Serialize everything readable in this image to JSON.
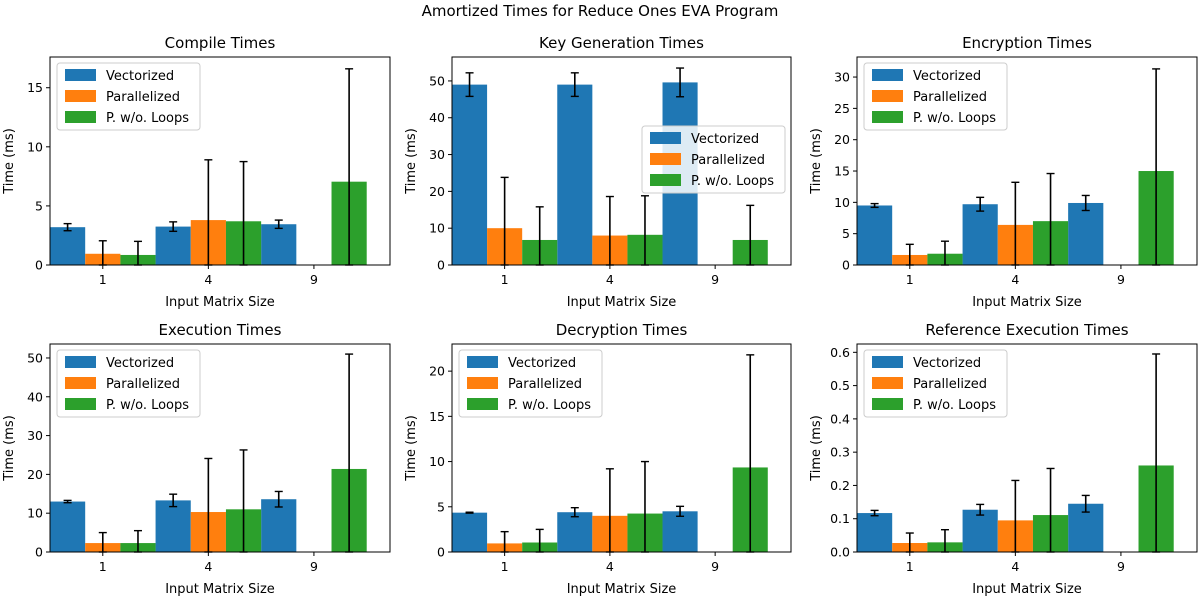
{
  "figure": {
    "title": "Amortized Times for Reduce Ones EVA Program"
  },
  "colors": {
    "Vectorized": "#1f77b4",
    "Parallelized": "#ff7f0e",
    "P. w/o. Loops": "#2ca02c",
    "errorbar": "#000000"
  },
  "chart_data": [
    {
      "type": "bar",
      "title": "Compile Times",
      "xlabel": "Input Matrix Size",
      "ylabel": "Time (ms)",
      "categories": [
        "1",
        "4",
        "9"
      ],
      "ylim": [
        0,
        17.6
      ],
      "yticks": [
        0,
        5,
        10,
        15
      ],
      "legend_position": "upper-left",
      "series": [
        {
          "name": "Vectorized",
          "values": [
            3.2,
            3.25,
            3.45
          ],
          "errors": [
            0.3,
            0.4,
            0.35
          ]
        },
        {
          "name": "Parallelized",
          "values": [
            0.95,
            3.8,
            null
          ],
          "errors": [
            1.1,
            5.1,
            null
          ]
        },
        {
          "name": "P. w/o. Loops",
          "values": [
            0.85,
            3.7,
            7.05
          ],
          "errors": [
            1.15,
            5.05,
            9.55
          ]
        }
      ]
    },
    {
      "type": "bar",
      "title": "Key Generation Times",
      "xlabel": "Input Matrix Size",
      "ylabel": "Time (ms)",
      "categories": [
        "1",
        "4",
        "9"
      ],
      "ylim": [
        0,
        56.5
      ],
      "yticks": [
        0,
        10,
        20,
        30,
        40,
        50
      ],
      "legend_position": "center-right",
      "series": [
        {
          "name": "Vectorized",
          "values": [
            49.0,
            49.0,
            49.6
          ],
          "errors": [
            3.2,
            3.2,
            3.9
          ]
        },
        {
          "name": "Parallelized",
          "values": [
            10.0,
            8.0,
            null
          ],
          "errors": [
            13.8,
            10.6,
            null
          ]
        },
        {
          "name": "P. w/o. Loops",
          "values": [
            6.8,
            8.2,
            6.8
          ],
          "errors": [
            9.0,
            10.6,
            9.4
          ]
        }
      ]
    },
    {
      "type": "bar",
      "title": "Encryption Times",
      "xlabel": "Input Matrix Size",
      "ylabel": "Time (ms)",
      "categories": [
        "1",
        "4",
        "9"
      ],
      "ylim": [
        0,
        33.2
      ],
      "yticks": [
        0,
        5,
        10,
        15,
        20,
        25,
        30
      ],
      "legend_position": "upper-left",
      "series": [
        {
          "name": "Vectorized",
          "values": [
            9.5,
            9.7,
            9.9
          ],
          "errors": [
            0.3,
            1.1,
            1.2
          ]
        },
        {
          "name": "Parallelized",
          "values": [
            1.6,
            6.4,
            null
          ],
          "errors": [
            1.7,
            6.8,
            null
          ]
        },
        {
          "name": "P. w/o. Loops",
          "values": [
            1.8,
            7.0,
            15.0
          ],
          "errors": [
            2.0,
            7.6,
            16.3
          ]
        }
      ]
    },
    {
      "type": "bar",
      "title": "Execution Times",
      "xlabel": "Input Matrix Size",
      "ylabel": "Time (ms)",
      "categories": [
        "1",
        "4",
        "9"
      ],
      "ylim": [
        0,
        53.6
      ],
      "yticks": [
        0,
        10,
        20,
        30,
        40,
        50
      ],
      "legend_position": "upper-left",
      "series": [
        {
          "name": "Vectorized",
          "values": [
            13.0,
            13.3,
            13.6
          ],
          "errors": [
            0.3,
            1.6,
            2.0
          ]
        },
        {
          "name": "Parallelized",
          "values": [
            2.3,
            10.3,
            null
          ],
          "errors": [
            2.7,
            13.8,
            null
          ]
        },
        {
          "name": "P. w/o. Loops",
          "values": [
            2.3,
            11.0,
            21.4
          ],
          "errors": [
            3.2,
            15.3,
            29.6
          ]
        }
      ]
    },
    {
      "type": "bar",
      "title": "Decryption Times",
      "xlabel": "Input Matrix Size",
      "ylabel": "Time (ms)",
      "categories": [
        "1",
        "4",
        "9"
      ],
      "ylim": [
        0,
        23.0
      ],
      "yticks": [
        0,
        5,
        10,
        15,
        20
      ],
      "legend_position": "upper-left",
      "series": [
        {
          "name": "Vectorized",
          "values": [
            4.35,
            4.4,
            4.5
          ],
          "errors": [
            0.05,
            0.5,
            0.55
          ]
        },
        {
          "name": "Parallelized",
          "values": [
            0.95,
            4.0,
            null
          ],
          "errors": [
            1.3,
            5.2,
            null
          ]
        },
        {
          "name": "P. w/o. Loops",
          "values": [
            1.05,
            4.25,
            9.35
          ],
          "errors": [
            1.45,
            5.75,
            12.45
          ]
        }
      ]
    },
    {
      "type": "bar",
      "title": "Reference Execution Times",
      "xlabel": "Input Matrix Size",
      "ylabel": "Time (ms)",
      "categories": [
        "1",
        "4",
        "9"
      ],
      "ylim": [
        0,
        0.625
      ],
      "yticks": [
        0.0,
        0.1,
        0.2,
        0.3,
        0.4,
        0.5,
        0.6
      ],
      "legend_position": "upper-left",
      "series": [
        {
          "name": "Vectorized",
          "values": [
            0.117,
            0.127,
            0.145
          ],
          "errors": [
            0.008,
            0.016,
            0.025
          ]
        },
        {
          "name": "Parallelized",
          "values": [
            0.027,
            0.095,
            null
          ],
          "errors": [
            0.03,
            0.12,
            null
          ]
        },
        {
          "name": "P. w/o. Loops",
          "values": [
            0.029,
            0.111,
            0.26
          ],
          "errors": [
            0.038,
            0.14,
            0.335
          ]
        }
      ]
    }
  ]
}
